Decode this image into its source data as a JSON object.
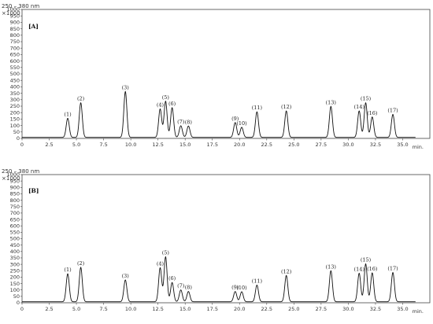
{
  "chart_data": [
    {
      "type": "line",
      "panel_label": "[A]",
      "wavelength_text": "250 – 380 nm",
      "y_multiplier_text": "×1000",
      "x_unit": "min.",
      "xlim": [
        0,
        37.5
      ],
      "ylim": [
        0,
        1000
      ],
      "x_ticks": [
        "0",
        "2.5",
        "5.0",
        "7.5",
        "10.0",
        "12.5",
        "15.0",
        "17.5",
        "20.0",
        "22.5",
        "25.0",
        "27.5",
        "30.0",
        "32.5",
        "35.0"
      ],
      "y_ticks": [
        "0",
        "50",
        "100",
        "150",
        "200",
        "250",
        "300",
        "350",
        "400",
        "450",
        "500",
        "550",
        "600",
        "650",
        "700",
        "750",
        "800",
        "850",
        "900",
        "950",
        "1000"
      ],
      "peaks": [
        {
          "label": "(1)",
          "t": 4.2,
          "h": 148
        },
        {
          "label": "(2)",
          "t": 5.4,
          "h": 268
        },
        {
          "label": "(3)",
          "t": 9.5,
          "h": 355
        },
        {
          "label": "(4)",
          "t": 12.7,
          "h": 220
        },
        {
          "label": "(5)",
          "t": 13.2,
          "h": 280
        },
        {
          "label": "(6)",
          "t": 13.8,
          "h": 230
        },
        {
          "label": "(7)",
          "t": 14.6,
          "h": 90
        },
        {
          "label": "(8)",
          "t": 15.3,
          "h": 88
        },
        {
          "label": "(9)",
          "t": 19.6,
          "h": 115
        },
        {
          "label": "(10)",
          "t": 20.2,
          "h": 78
        },
        {
          "label": "(11)",
          "t": 21.6,
          "h": 198
        },
        {
          "label": "(12)",
          "t": 24.3,
          "h": 205
        },
        {
          "label": "(13)",
          "t": 28.4,
          "h": 240
        },
        {
          "label": "(14)",
          "t": 31.0,
          "h": 205
        },
        {
          "label": "(15)",
          "t": 31.6,
          "h": 268
        },
        {
          "label": "(16)",
          "t": 32.2,
          "h": 158
        },
        {
          "label": "(17)",
          "t": 34.1,
          "h": 178
        }
      ]
    },
    {
      "type": "line",
      "panel_label": "[B]",
      "wavelength_text": "250 – 380 nm",
      "y_multiplier_text": "×1000",
      "x_unit": "min.",
      "xlim": [
        0,
        37.5
      ],
      "ylim": [
        0,
        1000
      ],
      "x_ticks": [
        "0",
        "2.5",
        "5.0",
        "7.5",
        "10.0",
        "12.5",
        "15.0",
        "17.5",
        "20.0",
        "22.5",
        "25.0",
        "27.5",
        "30.0",
        "32.5",
        "35.0"
      ],
      "y_ticks": [
        "0",
        "50",
        "100",
        "150",
        "200",
        "250",
        "300",
        "350",
        "400",
        "450",
        "500",
        "550",
        "600",
        "650",
        "700",
        "750",
        "800",
        "850",
        "900",
        "950",
        "1000"
      ],
      "peaks": [
        {
          "label": "(1)",
          "t": 4.2,
          "h": 218
        },
        {
          "label": "(2)",
          "t": 5.4,
          "h": 268
        },
        {
          "label": "(3)",
          "t": 9.5,
          "h": 170
        },
        {
          "label": "(4)",
          "t": 12.7,
          "h": 265
        },
        {
          "label": "(5)",
          "t": 13.2,
          "h": 350
        },
        {
          "label": "(6)",
          "t": 13.8,
          "h": 150
        },
        {
          "label": "(7)",
          "t": 14.6,
          "h": 92
        },
        {
          "label": "(8)",
          "t": 15.3,
          "h": 80
        },
        {
          "label": "(9)",
          "t": 19.6,
          "h": 80
        },
        {
          "label": "(10)",
          "t": 20.2,
          "h": 78
        },
        {
          "label": "(11)",
          "t": 21.6,
          "h": 130
        },
        {
          "label": "(12)",
          "t": 24.3,
          "h": 205
        },
        {
          "label": "(13)",
          "t": 28.4,
          "h": 242
        },
        {
          "label": "(14)",
          "t": 31.0,
          "h": 222
        },
        {
          "label": "(15)",
          "t": 31.6,
          "h": 295
        },
        {
          "label": "(16)",
          "t": 32.2,
          "h": 225
        },
        {
          "label": "(17)",
          "t": 34.1,
          "h": 228
        }
      ]
    }
  ]
}
